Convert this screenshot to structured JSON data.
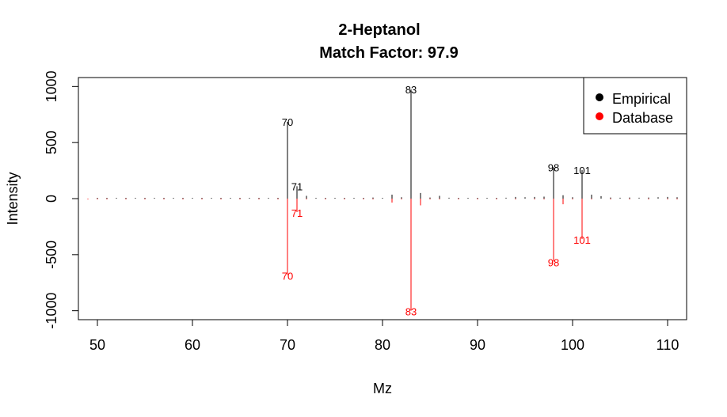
{
  "chart_data": {
    "type": "bar",
    "title": "2-Heptanol",
    "subtitle": "Match Factor: 97.9",
    "xlabel": "Mz",
    "ylabel": "Intensity",
    "xlim": [
      48,
      112
    ],
    "ylim": [
      -1080,
      1080
    ],
    "xticks": [
      50,
      60,
      70,
      80,
      90,
      100,
      110
    ],
    "yticks": [
      -1000,
      -500,
      0,
      500,
      1000
    ],
    "grid": false,
    "legend_position": "top-right",
    "series": [
      {
        "name": "Empirical",
        "color": "#000000",
        "peaks": [
          {
            "x": 50,
            "y": 1
          },
          {
            "x": 51,
            "y": 1
          },
          {
            "x": 52,
            "y": 1
          },
          {
            "x": 53,
            "y": 2
          },
          {
            "x": 54,
            "y": 1
          },
          {
            "x": 55,
            "y": 3
          },
          {
            "x": 56,
            "y": 2
          },
          {
            "x": 57,
            "y": 3
          },
          {
            "x": 58,
            "y": 2
          },
          {
            "x": 59,
            "y": 1
          },
          {
            "x": 60,
            "y": 1
          },
          {
            "x": 61,
            "y": 1
          },
          {
            "x": 62,
            "y": 1
          },
          {
            "x": 63,
            "y": 1
          },
          {
            "x": 64,
            "y": 1
          },
          {
            "x": 65,
            "y": 1
          },
          {
            "x": 66,
            "y": 1
          },
          {
            "x": 67,
            "y": 2
          },
          {
            "x": 68,
            "y": 2
          },
          {
            "x": 69,
            "y": 4
          },
          {
            "x": 70,
            "y": 685
          },
          {
            "x": 71,
            "y": 110
          },
          {
            "x": 72,
            "y": 25
          },
          {
            "x": 73,
            "y": 5
          },
          {
            "x": 74,
            "y": 3
          },
          {
            "x": 75,
            "y": 2
          },
          {
            "x": 76,
            "y": 2
          },
          {
            "x": 77,
            "y": 3
          },
          {
            "x": 78,
            "y": 4
          },
          {
            "x": 79,
            "y": 10
          },
          {
            "x": 80,
            "y": 5
          },
          {
            "x": 81,
            "y": 35
          },
          {
            "x": 82,
            "y": 12
          },
          {
            "x": 83,
            "y": 975
          },
          {
            "x": 84,
            "y": 50
          },
          {
            "x": 85,
            "y": 10
          },
          {
            "x": 86,
            "y": 25
          },
          {
            "x": 87,
            "y": 8
          },
          {
            "x": 88,
            "y": 5
          },
          {
            "x": 89,
            "y": 5
          },
          {
            "x": 90,
            "y": 4
          },
          {
            "x": 91,
            "y": 5
          },
          {
            "x": 92,
            "y": 5
          },
          {
            "x": 93,
            "y": 8
          },
          {
            "x": 94,
            "y": 15
          },
          {
            "x": 95,
            "y": 12
          },
          {
            "x": 96,
            "y": 15
          },
          {
            "x": 97,
            "y": 18
          },
          {
            "x": 98,
            "y": 280
          },
          {
            "x": 99,
            "y": 30
          },
          {
            "x": 100,
            "y": 12
          },
          {
            "x": 101,
            "y": 255
          },
          {
            "x": 102,
            "y": 35
          },
          {
            "x": 103,
            "y": 22
          },
          {
            "x": 104,
            "y": 10
          },
          {
            "x": 105,
            "y": 8
          },
          {
            "x": 106,
            "y": 10
          },
          {
            "x": 107,
            "y": 8
          },
          {
            "x": 108,
            "y": 10
          },
          {
            "x": 109,
            "y": 12
          },
          {
            "x": 110,
            "y": 15
          },
          {
            "x": 111,
            "y": 12
          }
        ],
        "labels": [
          {
            "x": 70,
            "y": 685,
            "text": "70"
          },
          {
            "x": 71,
            "y": 110,
            "text": "71"
          },
          {
            "x": 83,
            "y": 975,
            "text": "83"
          },
          {
            "x": 98,
            "y": 280,
            "text": "98"
          },
          {
            "x": 101,
            "y": 255,
            "text": "101"
          }
        ]
      },
      {
        "name": "Database",
        "color": "#ff0000",
        "peaks": [
          {
            "x": 49,
            "y": -1
          },
          {
            "x": 50,
            "y": -1
          },
          {
            "x": 51,
            "y": -1
          },
          {
            "x": 53,
            "y": -1
          },
          {
            "x": 55,
            "y": -1
          },
          {
            "x": 57,
            "y": -1
          },
          {
            "x": 59,
            "y": -1
          },
          {
            "x": 61,
            "y": -1
          },
          {
            "x": 63,
            "y": -1
          },
          {
            "x": 65,
            "y": -1
          },
          {
            "x": 67,
            "y": -1
          },
          {
            "x": 69,
            "y": -1
          },
          {
            "x": 70,
            "y": -680
          },
          {
            "x": 71,
            "y": -120
          },
          {
            "x": 72,
            "y": -5
          },
          {
            "x": 74,
            "y": -1
          },
          {
            "x": 76,
            "y": -1
          },
          {
            "x": 78,
            "y": -1
          },
          {
            "x": 79,
            "y": -2
          },
          {
            "x": 81,
            "y": -35
          },
          {
            "x": 82,
            "y": -2
          },
          {
            "x": 83,
            "y": -1000
          },
          {
            "x": 84,
            "y": -60
          },
          {
            "x": 85,
            "y": -3
          },
          {
            "x": 86,
            "y": -2
          },
          {
            "x": 88,
            "y": -1
          },
          {
            "x": 90,
            "y": -1
          },
          {
            "x": 92,
            "y": -1
          },
          {
            "x": 94,
            "y": -1
          },
          {
            "x": 96,
            "y": -2
          },
          {
            "x": 97,
            "y": -3
          },
          {
            "x": 98,
            "y": -560
          },
          {
            "x": 99,
            "y": -50
          },
          {
            "x": 100,
            "y": -3
          },
          {
            "x": 101,
            "y": -360
          },
          {
            "x": 102,
            "y": -5
          },
          {
            "x": 104,
            "y": -1
          },
          {
            "x": 106,
            "y": -1
          },
          {
            "x": 108,
            "y": -1
          },
          {
            "x": 110,
            "y": -1
          },
          {
            "x": 111,
            "y": -1
          }
        ],
        "labels": [
          {
            "x": 70,
            "y": -680,
            "text": "70"
          },
          {
            "x": 71,
            "y": -120,
            "text": "71"
          },
          {
            "x": 83,
            "y": -1000,
            "text": "83"
          },
          {
            "x": 98,
            "y": -560,
            "text": "98"
          },
          {
            "x": 101,
            "y": -360,
            "text": "101"
          }
        ]
      }
    ]
  }
}
